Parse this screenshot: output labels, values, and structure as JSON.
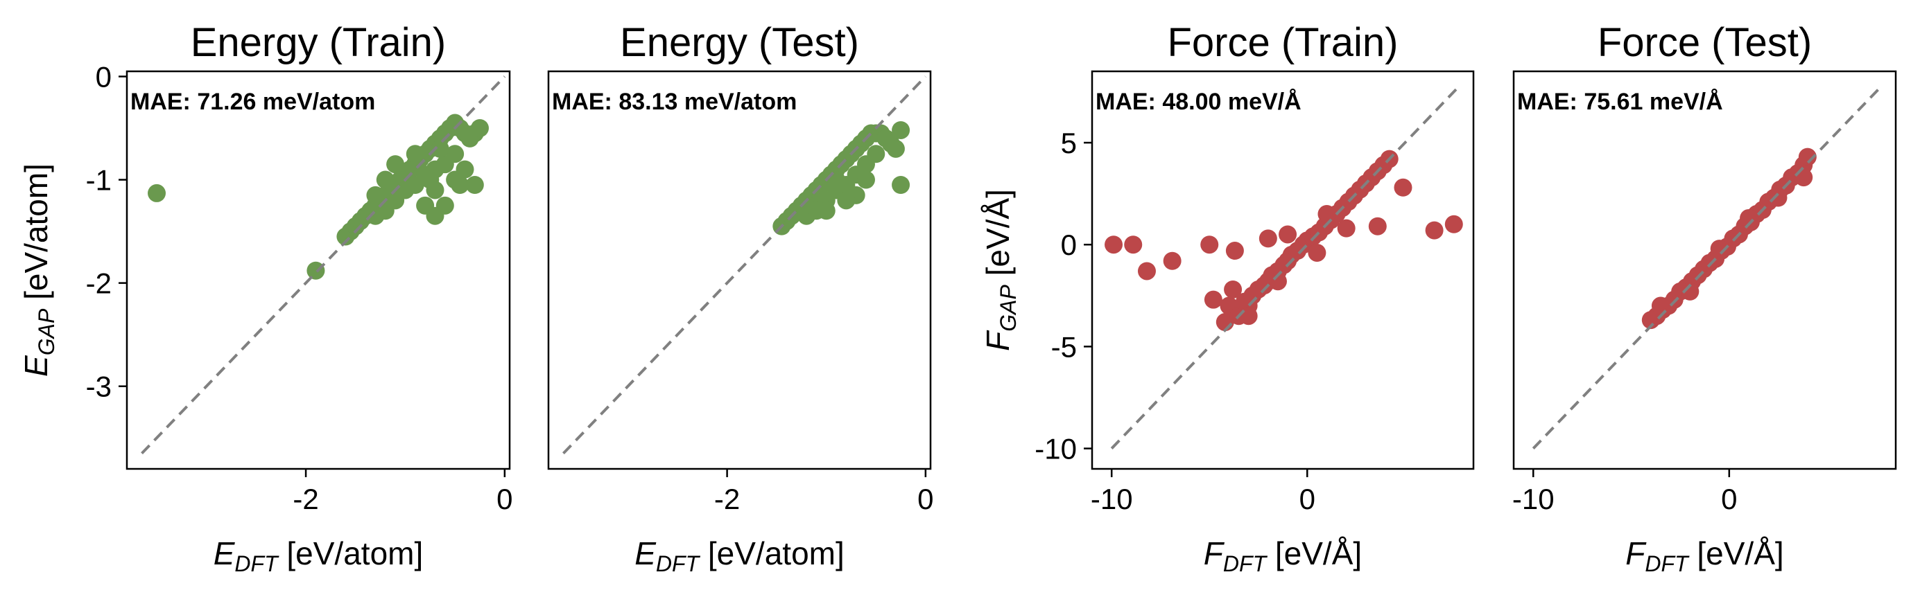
{
  "colors": {
    "energy": "#6a994e",
    "force": "#bc4749",
    "diagonal": "#808080",
    "frame": "#000000"
  },
  "panels": [
    {
      "title": "Energy (Train)",
      "mae_text": "MAE: 71.26 meV/atom",
      "xlabel": {
        "sym": "E",
        "sub": "DFT",
        "unit": " [eV/atom]"
      },
      "ylabel": {
        "sym": "E",
        "sub": "GAP",
        "unit": " [eV/atom]"
      },
      "xticks": [
        "-2",
        "0"
      ],
      "yticks": [
        "0",
        "-1",
        "-2",
        "-3"
      ],
      "show_yticks": true
    },
    {
      "title": "Energy (Test)",
      "mae_text": "MAE: 83.13 meV/atom",
      "xlabel": {
        "sym": "E",
        "sub": "DFT",
        "unit": " [eV/atom]"
      },
      "ylabel": null,
      "xticks": [
        "-2",
        "0"
      ],
      "yticks": [],
      "show_yticks": false
    },
    {
      "title": "Force (Train)",
      "mae_text": "MAE: 48.00 meV/Å",
      "xlabel": {
        "sym": "F",
        "sub": "DFT",
        "unit": " [eV/Å]"
      },
      "ylabel": {
        "sym": "F",
        "sub": "GAP",
        "unit": " [eV/Å]"
      },
      "xticks": [
        "-10",
        "0"
      ],
      "yticks": [
        "5",
        "0",
        "-5",
        "-10"
      ],
      "show_yticks": true
    },
    {
      "title": "Force (Test)",
      "mae_text": "MAE: 75.61 meV/Å",
      "xlabel": {
        "sym": "F",
        "sub": "DFT",
        "unit": " [eV/Å]"
      },
      "ylabel": null,
      "xticks": [
        "-10",
        "0"
      ],
      "yticks": [],
      "show_yticks": false
    }
  ],
  "chart_data": [
    {
      "type": "scatter",
      "title": "Energy (Train)",
      "xlabel": "E_DFT [eV/atom]",
      "ylabel": "E_GAP [eV/atom]",
      "xlim": [
        -3.8,
        0.05
      ],
      "ylim": [
        -3.8,
        0.05
      ],
      "xticks": [
        -2,
        0
      ],
      "yticks": [
        0,
        -1,
        -2,
        -3
      ],
      "diagonal": [
        -3.65,
        0.0
      ],
      "annotation": "MAE: 71.26 meV/atom",
      "series": [
        {
          "color": "#6a994e",
          "x": [
            -3.5,
            -1.9,
            -1.6,
            -1.55,
            -1.5,
            -1.45,
            -1.4,
            -1.35,
            -1.3,
            -1.3,
            -1.25,
            -1.2,
            -1.2,
            -1.15,
            -1.1,
            -1.1,
            -1.05,
            -1.0,
            -1.0,
            -0.95,
            -0.9,
            -0.9,
            -0.85,
            -0.8,
            -0.8,
            -0.75,
            -0.7,
            -0.7,
            -0.65,
            -0.6,
            -0.6,
            -0.55,
            -0.5,
            -0.5,
            -0.45,
            -0.4,
            -0.35,
            -0.3,
            -0.25,
            -0.5,
            -0.45,
            -0.4,
            -0.7,
            -0.8,
            -1.2,
            -1.1,
            -0.9,
            -1.3,
            -0.6,
            -0.7,
            -0.75,
            -0.65,
            -0.3
          ],
          "y": [
            -1.13,
            -1.88,
            -1.55,
            -1.5,
            -1.45,
            -1.4,
            -1.35,
            -1.3,
            -1.25,
            -1.35,
            -1.2,
            -1.15,
            -1.3,
            -1.1,
            -1.05,
            -1.2,
            -1.0,
            -0.95,
            -1.1,
            -0.9,
            -0.85,
            -1.05,
            -0.8,
            -0.75,
            -0.95,
            -0.7,
            -0.65,
            -0.9,
            -0.6,
            -0.55,
            -0.85,
            -0.5,
            -0.45,
            -0.75,
            -0.5,
            -0.55,
            -0.6,
            -0.55,
            -0.5,
            -1.0,
            -1.05,
            -0.9,
            -1.1,
            -1.25,
            -1.0,
            -0.85,
            -0.75,
            -1.15,
            -1.25,
            -1.35,
            -1.0,
            -0.7,
            -1.05
          ]
        }
      ]
    },
    {
      "type": "scatter",
      "title": "Energy (Test)",
      "xlabel": "E_DFT [eV/atom]",
      "xlim": [
        -3.8,
        0.05
      ],
      "ylim": [
        -3.8,
        0.05
      ],
      "xticks": [
        -2,
        0
      ],
      "diagonal": [
        -3.65,
        0.0
      ],
      "annotation": "MAE: 83.13 meV/atom",
      "series": [
        {
          "color": "#6a994e",
          "x": [
            -1.45,
            -1.4,
            -1.35,
            -1.3,
            -1.25,
            -1.2,
            -1.2,
            -1.15,
            -1.1,
            -1.1,
            -1.05,
            -1.0,
            -1.0,
            -0.95,
            -0.9,
            -0.9,
            -0.85,
            -0.8,
            -0.8,
            -0.75,
            -0.7,
            -0.7,
            -0.65,
            -0.6,
            -0.6,
            -0.55,
            -0.5,
            -0.45,
            -0.4,
            -0.35,
            -0.3,
            -0.25,
            -0.25,
            -0.6,
            -0.7,
            -0.5,
            -0.8,
            -1.0,
            -0.9
          ],
          "y": [
            -1.45,
            -1.4,
            -1.35,
            -1.3,
            -1.25,
            -1.2,
            -1.35,
            -1.15,
            -1.1,
            -1.3,
            -1.05,
            -1.0,
            -1.2,
            -0.95,
            -0.9,
            -1.1,
            -0.85,
            -0.8,
            -1.05,
            -0.75,
            -0.7,
            -0.95,
            -0.65,
            -0.6,
            -0.85,
            -0.55,
            -0.55,
            -0.55,
            -0.6,
            -0.65,
            -0.7,
            -0.52,
            -1.05,
            -1.0,
            -1.15,
            -0.75,
            -1.2,
            -1.3,
            -1.0
          ]
        }
      ]
    },
    {
      "type": "scatter",
      "title": "Force (Train)",
      "xlabel": "F_DFT [eV/Å]",
      "ylabel": "F_GAP [eV/Å]",
      "xlim": [
        -11,
        8.5
      ],
      "ylim": [
        -11,
        8.5
      ],
      "xticks": [
        -10,
        0
      ],
      "yticks": [
        5,
        0,
        -5,
        -10
      ],
      "diagonal": [
        -10.0,
        7.8
      ],
      "annotation": "MAE: 48.00 meV/Å",
      "series": [
        {
          "color": "#bc4749",
          "x": [
            -9.9,
            -8.9,
            -8.2,
            -6.9,
            -5.0,
            -3.7,
            -4.8,
            -4.2,
            -4.0,
            -3.8,
            -3.5,
            -3.2,
            -3.0,
            -2.8,
            -2.5,
            -2.2,
            -2.0,
            -1.8,
            -1.5,
            -1.2,
            -1.0,
            -0.8,
            -0.5,
            -0.2,
            0.0,
            0.3,
            0.6,
            0.9,
            1.2,
            1.5,
            1.8,
            2.1,
            2.4,
            2.7,
            3.0,
            3.3,
            3.6,
            3.9,
            4.2,
            4.9,
            3.6,
            6.5,
            7.5,
            -2.0,
            -1.0,
            0.5,
            2.0,
            -1.5,
            -3.0,
            1.0
          ],
          "y": [
            0.0,
            0.0,
            -1.3,
            -0.8,
            0.0,
            -0.3,
            -2.7,
            -3.8,
            -3.0,
            -2.2,
            -3.5,
            -2.8,
            -3.0,
            -2.5,
            -2.2,
            -2.0,
            -1.8,
            -1.5,
            -1.3,
            -1.0,
            -0.8,
            -0.5,
            -0.3,
            0.0,
            0.2,
            0.4,
            0.6,
            0.9,
            1.2,
            1.5,
            1.8,
            2.1,
            2.4,
            2.7,
            3.0,
            3.3,
            3.6,
            3.9,
            4.2,
            2.8,
            0.9,
            0.7,
            1.0,
            0.3,
            0.5,
            -0.4,
            0.8,
            -1.8,
            -3.5,
            1.5
          ]
        }
      ]
    },
    {
      "type": "scatter",
      "title": "Force (Test)",
      "xlabel": "F_DFT [eV/Å]",
      "xlim": [
        -11,
        8.5
      ],
      "ylim": [
        -11,
        8.5
      ],
      "xticks": [
        -10,
        0
      ],
      "diagonal": [
        -10.0,
        7.8
      ],
      "annotation": "MAE: 75.61 meV/Å",
      "series": [
        {
          "color": "#bc4749",
          "x": [
            -4.0,
            -3.7,
            -3.4,
            -3.1,
            -2.8,
            -2.5,
            -2.2,
            -1.9,
            -1.6,
            -1.3,
            -1.0,
            -0.7,
            -0.4,
            -0.1,
            0.2,
            0.5,
            0.8,
            1.1,
            1.4,
            1.7,
            2.0,
            2.3,
            2.6,
            2.9,
            3.2,
            3.5,
            3.8,
            4.0,
            -3.5,
            -2.0,
            -0.5,
            1.0,
            2.5,
            3.8
          ],
          "y": [
            -3.7,
            -3.5,
            -3.2,
            -3.0,
            -2.7,
            -2.3,
            -2.1,
            -1.8,
            -1.5,
            -1.2,
            -0.9,
            -0.7,
            -0.3,
            -0.1,
            0.3,
            0.5,
            0.9,
            1.1,
            1.5,
            1.7,
            2.1,
            2.3,
            2.7,
            2.9,
            3.3,
            3.5,
            3.9,
            4.3,
            -3.0,
            -2.3,
            -0.2,
            1.3,
            2.3,
            3.3
          ]
        }
      ]
    }
  ]
}
